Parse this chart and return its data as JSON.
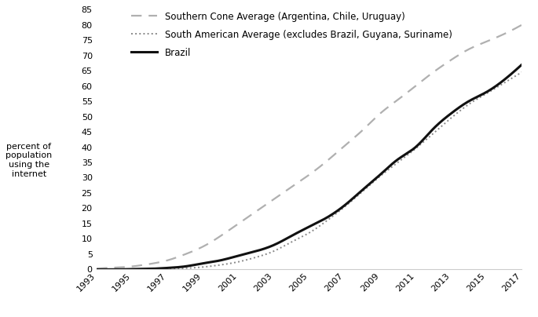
{
  "years": [
    1993,
    1994,
    1995,
    1996,
    1997,
    1998,
    1999,
    2000,
    2001,
    2002,
    2003,
    2004,
    2005,
    2006,
    2007,
    2008,
    2009,
    2010,
    2011,
    2012,
    2013,
    2014,
    2015,
    2016,
    2017
  ],
  "brazil": [
    0.0,
    0.0,
    0.1,
    0.2,
    0.5,
    1.0,
    2.0,
    3.0,
    4.5,
    6.0,
    8.0,
    11.0,
    14.0,
    17.0,
    21.0,
    26.0,
    31.0,
    36.0,
    40.0,
    46.0,
    51.0,
    55.0,
    58.0,
    62.0,
    67.0
  ],
  "southern_cone": [
    0.3,
    0.6,
    1.0,
    1.8,
    3.0,
    5.0,
    7.5,
    11.0,
    15.0,
    19.0,
    23.0,
    27.0,
    31.0,
    35.5,
    40.5,
    45.5,
    51.0,
    55.5,
    60.0,
    64.5,
    68.5,
    72.0,
    74.5,
    77.0,
    80.0
  ],
  "south_american_avg": [
    0.0,
    0.0,
    0.05,
    0.1,
    0.2,
    0.4,
    0.8,
    1.5,
    2.5,
    4.0,
    6.0,
    9.0,
    12.0,
    16.0,
    20.5,
    25.5,
    30.5,
    35.0,
    39.5,
    44.5,
    49.5,
    54.0,
    57.5,
    61.0,
    64.5
  ],
  "ylim": [
    0,
    85
  ],
  "yticks": [
    0,
    5,
    10,
    15,
    20,
    25,
    30,
    35,
    40,
    45,
    50,
    55,
    60,
    65,
    70,
    75,
    80,
    85
  ],
  "xticks": [
    1993,
    1995,
    1997,
    1999,
    2001,
    2003,
    2005,
    2007,
    2009,
    2011,
    2013,
    2015,
    2017
  ],
  "legend_southern_cone": "Southern Cone Average (Argentina, Chile, Uruguay)",
  "legend_south_american": "South American Average (excludes Brazil, Guyana, Suriname)",
  "legend_brazil": "Brazil",
  "ylabel": "percent of\npopulation\nusing the\ninternet",
  "southern_cone_color": "#b0b0b0",
  "south_american_color": "#888888",
  "brazil_color": "#111111",
  "background_color": "#ffffff",
  "axis_color": "#cccccc"
}
